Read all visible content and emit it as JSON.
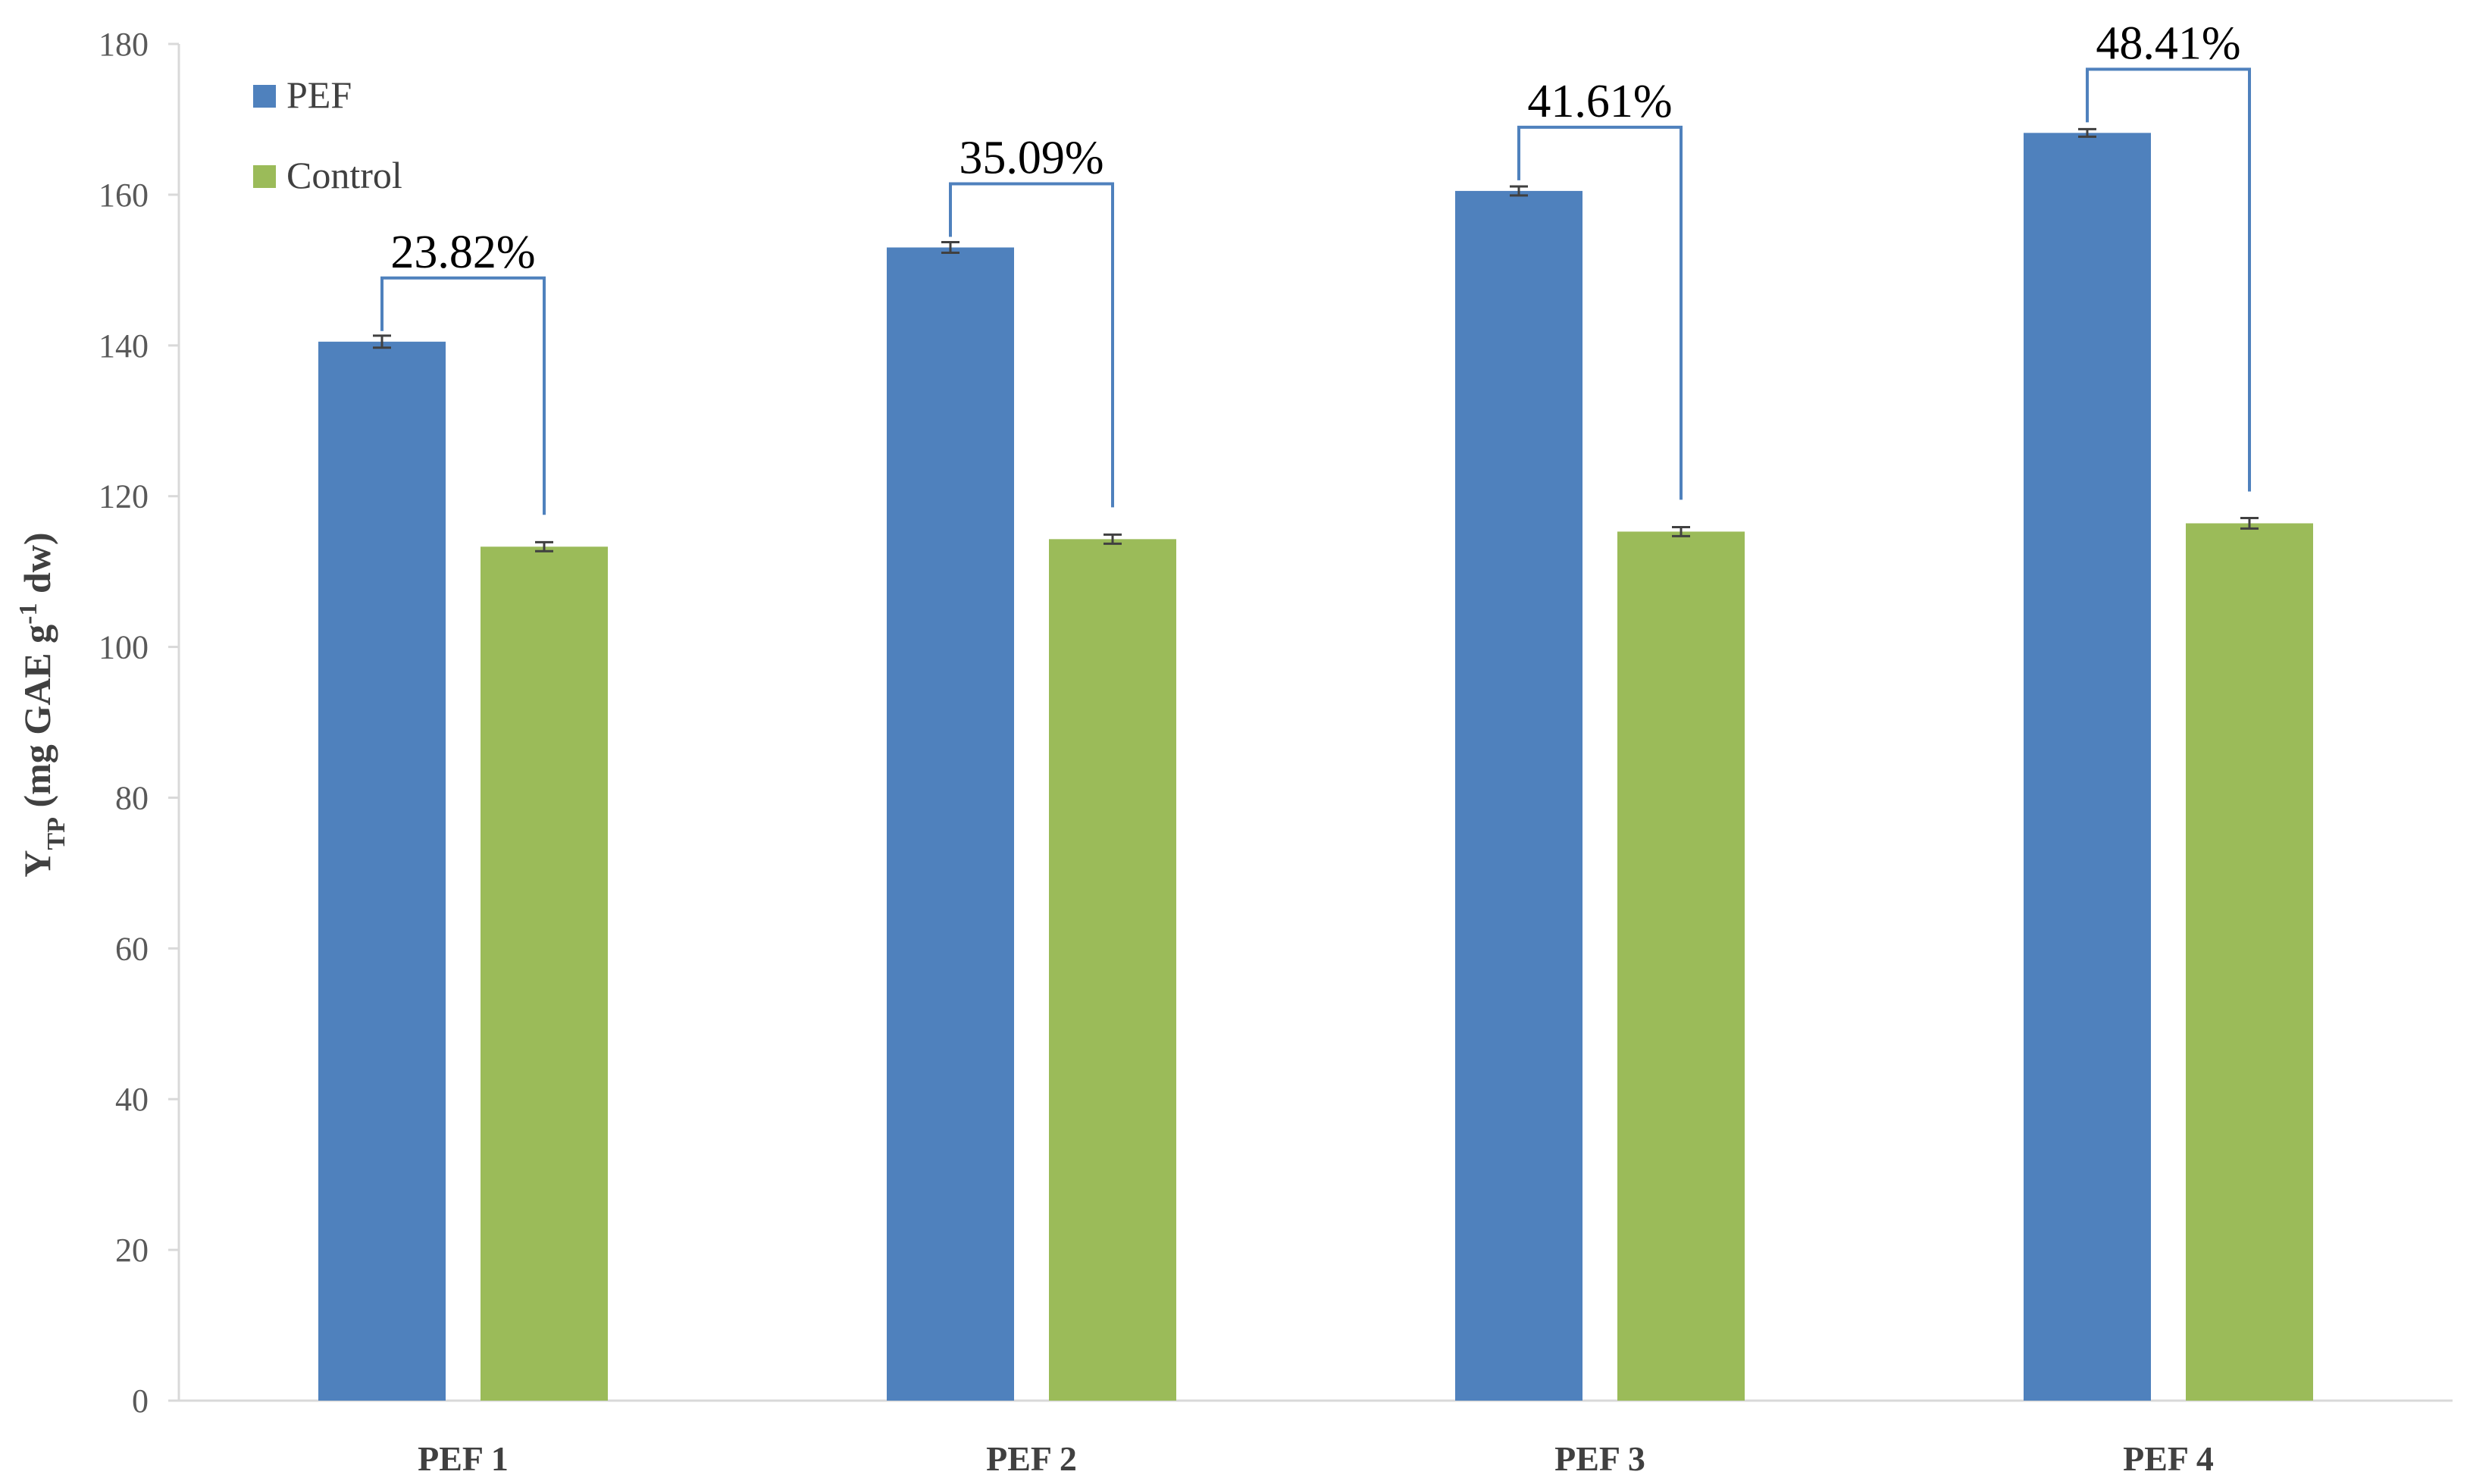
{
  "chart_data": {
    "type": "bar",
    "categories": [
      "PEF 1",
      "PEF 2",
      "PEF 3",
      "PEF 4"
    ],
    "series": [
      {
        "name": "PEF",
        "color": "#4f81bd",
        "values": [
          140.5,
          153.0,
          160.5,
          168.2
        ],
        "errors": [
          0.8,
          0.7,
          0.6,
          0.5
        ]
      },
      {
        "name": "Control",
        "color": "#9bbb59",
        "values": [
          113.3,
          114.3,
          115.3,
          116.4
        ],
        "errors": [
          0.6,
          0.6,
          0.6,
          0.7
        ]
      }
    ],
    "annotations": [
      "23.82%",
      "35.09%",
      "41.61%",
      "48.41%"
    ],
    "annotation_color": "#4f81bd",
    "ylabel": {
      "main": "Y",
      "sub": "TP",
      "unit_pre": " (mg GAE g",
      "sup": "-1",
      "unit_post": " dw)"
    },
    "ylim": [
      0,
      180
    ],
    "yticks": [
      "0",
      "20",
      "40",
      "60",
      "80",
      "100",
      "120",
      "140",
      "160",
      "180"
    ],
    "grid": false,
    "legend": "top-left"
  }
}
